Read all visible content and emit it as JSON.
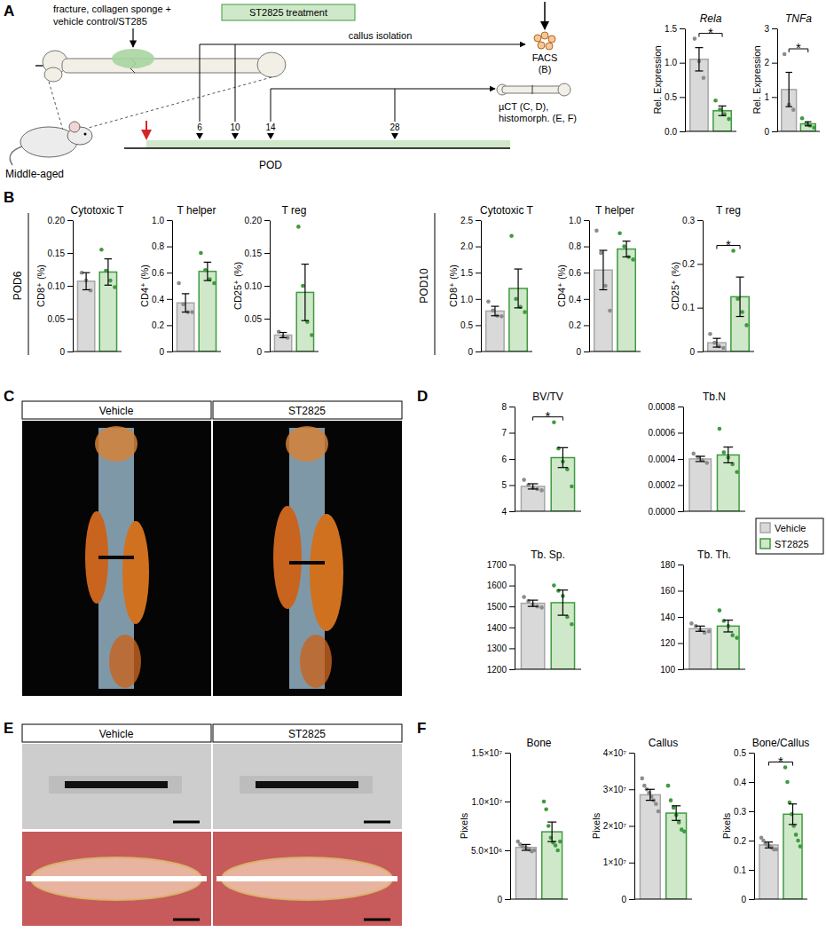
{
  "chart_data": [
    {
      "type": "bar",
      "title": "Rela",
      "y_label": "Rel. Expression",
      "categories": [
        null,
        null
      ],
      "values": [
        1.05,
        0.3
      ],
      "errors": [
        0.17,
        0.07
      ],
      "points": [
        [
          1.35,
          1.02,
          0.78
        ],
        [
          0.45,
          0.32,
          0.25,
          0.18
        ]
      ],
      "colors": [
        "#d9d9d9",
        "#cfe8c9"
      ],
      "ylim": [
        0,
        1.5
      ],
      "yticks": [
        {
          "value": 0,
          "label": "0.0"
        },
        {
          "value": 0.5,
          "label": "0.5"
        },
        {
          "value": 1,
          "label": "1.0"
        },
        {
          "value": 1.5,
          "label": "1.5"
        }
      ],
      "tick_labels": "y",
      "annotation": "*"
    },
    {
      "type": "bar",
      "title": "TNFa",
      "y_label": "Rel. Expression",
      "categories": [
        null,
        null
      ],
      "values": [
        1.22,
        0.22
      ],
      "errors": [
        0.5,
        0.06
      ],
      "points": [
        [
          2.25,
          0.78,
          0.63
        ],
        [
          0.38,
          0.22,
          0.17,
          0.11
        ]
      ],
      "colors": [
        "#d9d9d9",
        "#cfe8c9"
      ],
      "ylim": [
        0,
        3
      ],
      "yticks": [
        0,
        1,
        2,
        3
      ],
      "tick_labels": "y",
      "annotation": "*"
    },
    {
      "type": "bar",
      "title": "Cytotoxic T",
      "y_label": "CD8⁺ (%)",
      "categories": [
        null,
        null
      ],
      "values": [
        0.107,
        0.121
      ],
      "errors": [
        0.013,
        0.02
      ],
      "points": [
        [
          0.12,
          0.108,
          0.093
        ],
        [
          0.155,
          0.123,
          0.108,
          0.098
        ]
      ],
      "colors": [
        "#d9d9d9",
        "#cfe8c9"
      ],
      "ylim": [
        0,
        0.2
      ],
      "yticks": [
        0,
        0.05,
        {
          "value": 0.1,
          "label": "0.10"
        },
        0.15,
        {
          "value": 0.2,
          "label": "0.20"
        }
      ],
      "tick_labels": "y"
    },
    {
      "type": "bar",
      "title": "T helper",
      "y_label": "CD4⁺ (%)",
      "categories": [
        null,
        null
      ],
      "values": [
        0.37,
        0.61
      ],
      "errors": [
        0.07,
        0.07
      ],
      "points": [
        [
          0.52,
          0.36,
          0.3,
          0.3
        ],
        [
          0.75,
          0.62,
          0.55,
          0.52
        ]
      ],
      "colors": [
        "#d9d9d9",
        "#cfe8c9"
      ],
      "ylim": [
        0,
        1
      ],
      "yticks": [
        0,
        0.2,
        0.4,
        0.6,
        0.8,
        {
          "value": 1,
          "label": "1.0"
        }
      ],
      "tick_labels": "y"
    },
    {
      "type": "bar",
      "title": "T reg",
      "y_label": "CD25⁺ (%)",
      "categories": [
        null,
        null
      ],
      "values": [
        0.025,
        0.09
      ],
      "errors": [
        0.004,
        0.043
      ],
      "points": [
        [
          0.03,
          0.023,
          0.021
        ],
        [
          0.19,
          0.1,
          0.045,
          0.025
        ]
      ],
      "colors": [
        "#d9d9d9",
        "#cfe8c9"
      ],
      "ylim": [
        0,
        0.2
      ],
      "yticks": [
        0,
        0.05,
        {
          "value": 0.1,
          "label": "0.10"
        },
        0.15,
        {
          "value": 0.2,
          "label": "0.20"
        }
      ],
      "tick_labels": "y"
    },
    {
      "type": "bar",
      "title": "Cytotoxic T",
      "y_label": "CD8⁺ (%)",
      "categories": [
        null,
        null
      ],
      "values": [
        0.77,
        1.2
      ],
      "errors": [
        0.09,
        0.37
      ],
      "points": [
        [
          0.95,
          0.78,
          0.68,
          0.67
        ],
        [
          2.2,
          1.0,
          0.85,
          0.75
        ]
      ],
      "colors": [
        "#d9d9d9",
        "#cfe8c9"
      ],
      "ylim": [
        0,
        2.5
      ],
      "yticks": [
        0,
        0.5,
        {
          "value": 1,
          "label": "1.0"
        },
        1.5,
        {
          "value": 2,
          "label": "2.0"
        },
        2.5
      ],
      "tick_labels": "y"
    },
    {
      "type": "bar",
      "title": "T helper",
      "y_label": "CD4⁺ (%)",
      "categories": [
        null,
        null
      ],
      "values": [
        0.62,
        0.78
      ],
      "errors": [
        0.15,
        0.06
      ],
      "points": [
        [
          0.92,
          0.75,
          0.5,
          0.31
        ],
        [
          0.9,
          0.8,
          0.72,
          0.7
        ]
      ],
      "colors": [
        "#d9d9d9",
        "#cfe8c9"
      ],
      "ylim": [
        0,
        1
      ],
      "yticks": [
        0,
        0.2,
        0.4,
        0.6,
        0.8,
        {
          "value": 1,
          "label": "1.0"
        }
      ],
      "tick_labels": "y"
    },
    {
      "type": "bar",
      "title": "T reg",
      "y_label": "CD25⁺ (%)",
      "categories": [
        null,
        null
      ],
      "values": [
        0.02,
        0.125
      ],
      "errors": [
        0.01,
        0.045
      ],
      "points": [
        [
          0.04,
          0.02,
          0.012,
          0.008
        ],
        [
          0.23,
          0.12,
          0.09,
          0.06
        ]
      ],
      "colors": [
        "#d9d9d9",
        "#cfe8c9"
      ],
      "ylim": [
        0,
        0.3
      ],
      "yticks": [
        0,
        0.1,
        0.2,
        0.3
      ],
      "tick_labels": "y",
      "annotation": "*"
    },
    {
      "type": "bar",
      "title": "BV/TV",
      "categories": [
        null,
        null
      ],
      "values": [
        4.95,
        6.05
      ],
      "errors": [
        0.1,
        0.38
      ],
      "points": [
        [
          5.2,
          5.0,
          4.9,
          4.85,
          4.8
        ],
        [
          7.4,
          6.4,
          5.9,
          5.6,
          4.95
        ]
      ],
      "colors": [
        "#d9d9d9",
        "#cfe8c9"
      ],
      "ylim": [
        4,
        8
      ],
      "yticks": [
        4,
        5,
        6,
        7,
        8
      ],
      "tick_labels": "y",
      "annotation": "*"
    },
    {
      "type": "bar",
      "title": "Tb.N",
      "categories": [
        null,
        null
      ],
      "values": [
        0.0004,
        0.00043
      ],
      "errors": [
        2e-05,
        6e-05
      ],
      "points": [
        [
          0.00044,
          0.00041,
          0.00039,
          0.00037
        ],
        [
          0.00063,
          0.00045,
          0.00041,
          0.00036,
          0.0003
        ]
      ],
      "colors": [
        "#d9d9d9",
        "#cfe8c9"
      ],
      "ylim": [
        0,
        0.0008
      ],
      "yticks": [
        {
          "value": 0,
          "label": "0.0000"
        },
        {
          "value": 0.0002,
          "label": "0.0002"
        },
        {
          "value": 0.0004,
          "label": "0.0004"
        },
        {
          "value": 0.0006,
          "label": "0.0006"
        },
        {
          "value": 0.0008,
          "label": "0.0008"
        }
      ],
      "tick_labels": "y"
    },
    {
      "type": "bar",
      "title": "Tb. Sp.",
      "categories": [
        null,
        null
      ],
      "values": [
        1515,
        1518
      ],
      "errors": [
        15,
        60
      ],
      "points": [
        [
          1545,
          1525,
          1510,
          1500,
          1495
        ],
        [
          1600,
          1575,
          1550,
          1450,
          1415
        ]
      ],
      "colors": [
        "#d9d9d9",
        "#cfe8c9"
      ],
      "ylim": [
        1200,
        1700
      ],
      "yticks": [
        1200,
        1300,
        1400,
        1500,
        1600,
        1700
      ],
      "tick_labels": "y"
    },
    {
      "type": "bar",
      "title": "Tb. Th.",
      "categories": [
        null,
        null
      ],
      "values": [
        131,
        133
      ],
      "errors": [
        2,
        4.5
      ],
      "points": [
        [
          135,
          133,
          130,
          128,
          129
        ],
        [
          145,
          137,
          133,
          126,
          124
        ]
      ],
      "colors": [
        "#d9d9d9",
        "#cfe8c9"
      ],
      "ylim": [
        100,
        180
      ],
      "yticks": [
        100,
        120,
        140,
        160,
        180
      ],
      "tick_labels": "y"
    },
    {
      "type": "bar",
      "title": "Bone",
      "y_label": "Pixels",
      "categories": [
        null,
        null
      ],
      "values": [
        5300000,
        6900000
      ],
      "errors": [
        300000,
        1000000
      ],
      "points": [
        [
          5900000,
          5600000,
          5400000,
          5300000,
          5200000,
          5100000,
          4900000,
          5000000
        ],
        [
          10000000,
          9200000,
          7500000,
          6300000,
          5800000,
          5500000,
          5000000,
          5900000
        ]
      ],
      "colors": [
        "#d9d9d9",
        "#cfe8c9"
      ],
      "ylim": [
        0,
        15000000
      ],
      "yticks": [
        0,
        {
          "value": 5000000,
          "label": "5.0×10⁶"
        },
        {
          "value": 10000000,
          "label": "1.0×10⁷"
        },
        {
          "value": 15000000,
          "label": "1.5×10⁷"
        }
      ],
      "tick_labels": "y"
    },
    {
      "type": "bar",
      "title": "Callus",
      "y_label": "Pixels",
      "categories": [
        null,
        null
      ],
      "values": [
        28500000,
        23500000
      ],
      "errors": [
        1500000,
        2000000
      ],
      "points": [
        [
          33000000,
          31000000,
          30000000,
          29000000,
          28000000,
          27000000,
          26000000,
          24000000
        ],
        [
          31000000,
          27000000,
          25000000,
          23000000,
          21000000,
          19000000,
          18500000
        ]
      ],
      "colors": [
        "#d9d9d9",
        "#cfe8c9"
      ],
      "ylim": [
        0,
        40000000
      ],
      "yticks": [
        0,
        {
          "value": 10000000,
          "label": "1×10⁷"
        },
        {
          "value": 20000000,
          "label": "2×10⁷"
        },
        {
          "value": 30000000,
          "label": "3×10⁷"
        },
        {
          "value": 40000000,
          "label": "4×10⁷"
        }
      ],
      "tick_labels": "y"
    },
    {
      "type": "bar",
      "title": "Bone/Callus",
      "y_label": "Pixels",
      "categories": [
        null,
        null
      ],
      "values": [
        0.185,
        0.29
      ],
      "errors": [
        0.01,
        0.035
      ],
      "points": [
        [
          0.21,
          0.2,
          0.19,
          0.185,
          0.18,
          0.175,
          0.17,
          0.17
        ],
        [
          0.45,
          0.4,
          0.33,
          0.29,
          0.25,
          0.22,
          0.2,
          0.18
        ]
      ],
      "colors": [
        "#d9d9d9",
        "#cfe8c9"
      ],
      "ylim": [
        0,
        0.5
      ],
      "yticks": [
        0,
        0.1,
        0.2,
        0.3,
        0.4,
        0.5
      ],
      "tick_labels": "y",
      "annotation": "*"
    }
  ],
  "figure": {
    "panel_labels": [
      "A",
      "B",
      "C",
      "D",
      "E",
      "F"
    ],
    "schematic": {
      "description": [
        "fracture, collagen sponge +",
        "vehicle control/ST285"
      ],
      "treatment": "ST2825 treatment",
      "subject": "Middle-aged",
      "axis_label": "POD",
      "xlim": [
        0,
        28
      ],
      "ticks": [
        6,
        10,
        14,
        28
      ],
      "callus_label": "callus isolation",
      "facs": [
        "FACS",
        "(B)"
      ],
      "analysis": [
        "µCT (C, D),",
        "histomorph. (E, F)"
      ]
    },
    "row_labels": [
      "POD6",
      "POD10"
    ],
    "images": {
      "C": [
        "Vehicle",
        "ST2825"
      ],
      "E": [
        "Vehicle",
        "ST2825"
      ]
    },
    "legend": [
      {
        "name": "Vehicle",
        "color": "#d9d9d9"
      },
      {
        "name": "ST2825",
        "color": "#cfe8c9"
      }
    ]
  }
}
